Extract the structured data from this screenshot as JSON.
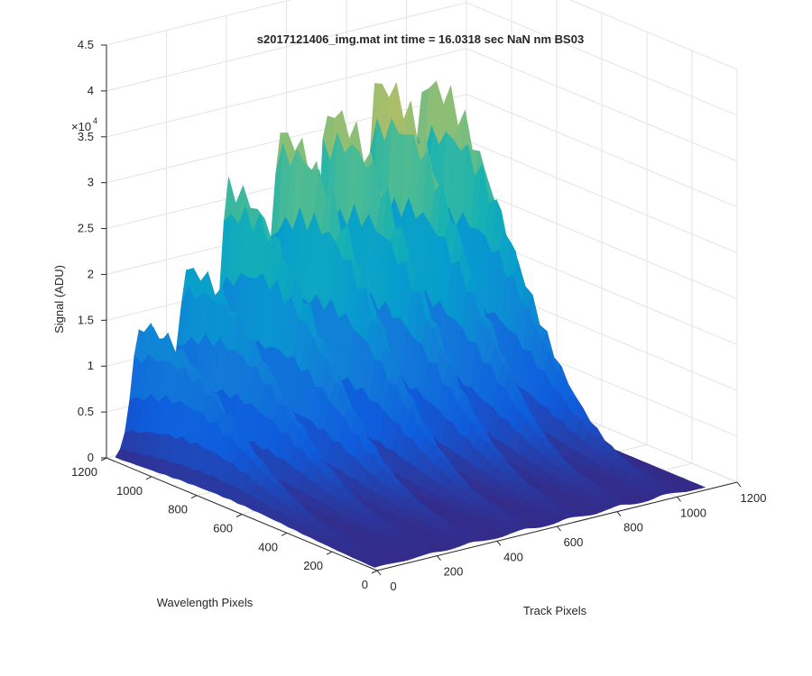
{
  "chart_data": {
    "type": "surface",
    "title": "s2017121406_img.mat int time = 16.0318 sec  NaN nm BS03",
    "xlabel": "Track Pixels",
    "ylabel": "Wavelength Pixels",
    "zlabel": "Signal (ADU)",
    "z_exponent_label": "×10",
    "z_exponent": "4",
    "x_ticks": [
      "0",
      "200",
      "400",
      "600",
      "800",
      "1000",
      "1200"
    ],
    "y_ticks": [
      "0",
      "200",
      "400",
      "600",
      "800",
      "1000",
      "1200"
    ],
    "z_ticks": [
      "0",
      "0.5",
      "1",
      "1.5",
      "2",
      "2.5",
      "3",
      "3.5",
      "4",
      "4.5"
    ],
    "xlim": [
      0,
      1200
    ],
    "ylim": [
      0,
      1200
    ],
    "zlim": [
      0,
      45000
    ],
    "grid": true,
    "colormap": "parula",
    "series": [
      {
        "track_center": 80,
        "peak_signal": 15000
      },
      {
        "track_center": 230,
        "peak_signal": 20000
      },
      {
        "track_center": 370,
        "peak_signal": 28000
      },
      {
        "track_center": 540,
        "peak_signal": 33000
      },
      {
        "track_center": 700,
        "peak_signal": 34000
      },
      {
        "track_center": 860,
        "peak_signal": 36000
      },
      {
        "track_center": 1020,
        "peak_signal": 35000
      }
    ]
  }
}
